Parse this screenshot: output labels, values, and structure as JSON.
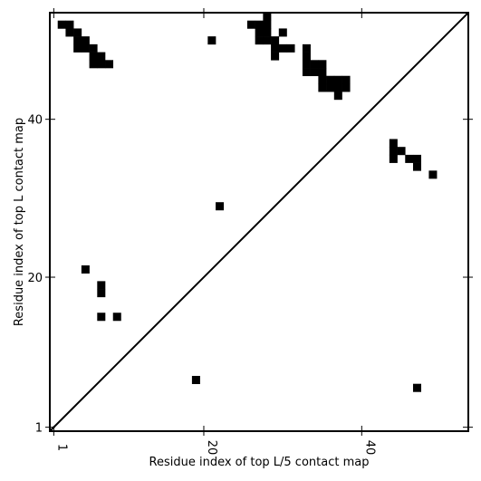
{
  "chart_data": {
    "type": "heatmap",
    "title": "",
    "xlabel": "Residue index of top L/5 contact map",
    "ylabel": "Residue index of top L contact map",
    "xlim": [
      0.5,
      53.5
    ],
    "ylim": [
      0.5,
      53.5
    ],
    "xticks": [
      1,
      20,
      40
    ],
    "yticks": [
      1,
      20,
      40
    ],
    "grid": false,
    "colors": {
      "contact": "#000000",
      "diagonal": "#000000",
      "background": "#ffffff"
    },
    "diagonal": [
      [
        0.5,
        0.5
      ],
      [
        53.5,
        53.5
      ]
    ],
    "upper_contacts": [
      [
        2,
        52
      ],
      [
        3,
        52
      ],
      [
        3,
        51
      ],
      [
        4,
        51
      ],
      [
        4,
        50
      ],
      [
        5,
        50
      ],
      [
        4,
        49
      ],
      [
        5,
        49
      ],
      [
        6,
        49
      ],
      [
        6,
        48
      ],
      [
        7,
        48
      ],
      [
        6,
        47
      ],
      [
        7,
        47
      ],
      [
        8,
        47
      ],
      [
        21,
        50
      ],
      [
        26,
        52
      ],
      [
        27,
        52
      ],
      [
        28,
        53
      ],
      [
        28,
        52
      ],
      [
        27,
        51
      ],
      [
        28,
        51
      ],
      [
        27,
        50
      ],
      [
        28,
        50
      ],
      [
        29,
        50
      ],
      [
        29,
        49
      ],
      [
        30,
        49
      ],
      [
        31,
        49
      ],
      [
        29,
        48
      ],
      [
        30,
        51
      ],
      [
        33,
        49
      ],
      [
        33,
        48
      ],
      [
        33,
        47
      ],
      [
        34,
        47
      ],
      [
        35,
        47
      ],
      [
        33,
        46
      ],
      [
        34,
        46
      ],
      [
        35,
        46
      ],
      [
        35,
        45
      ],
      [
        36,
        45
      ],
      [
        37,
        45
      ],
      [
        38,
        45
      ],
      [
        35,
        44
      ],
      [
        36,
        44
      ],
      [
        37,
        44
      ],
      [
        38,
        44
      ],
      [
        37,
        43
      ],
      [
        44,
        37
      ],
      [
        44,
        36
      ],
      [
        45,
        36
      ],
      [
        44,
        35
      ],
      [
        46,
        35
      ],
      [
        47,
        35
      ],
      [
        47,
        34
      ],
      [
        49,
        33
      ]
    ],
    "lower_contacts": [
      [
        5,
        21
      ],
      [
        7,
        19
      ],
      [
        7,
        18
      ],
      [
        7,
        15
      ],
      [
        9,
        15
      ],
      [
        22,
        29
      ],
      [
        19,
        7
      ],
      [
        47,
        6
      ]
    ]
  }
}
